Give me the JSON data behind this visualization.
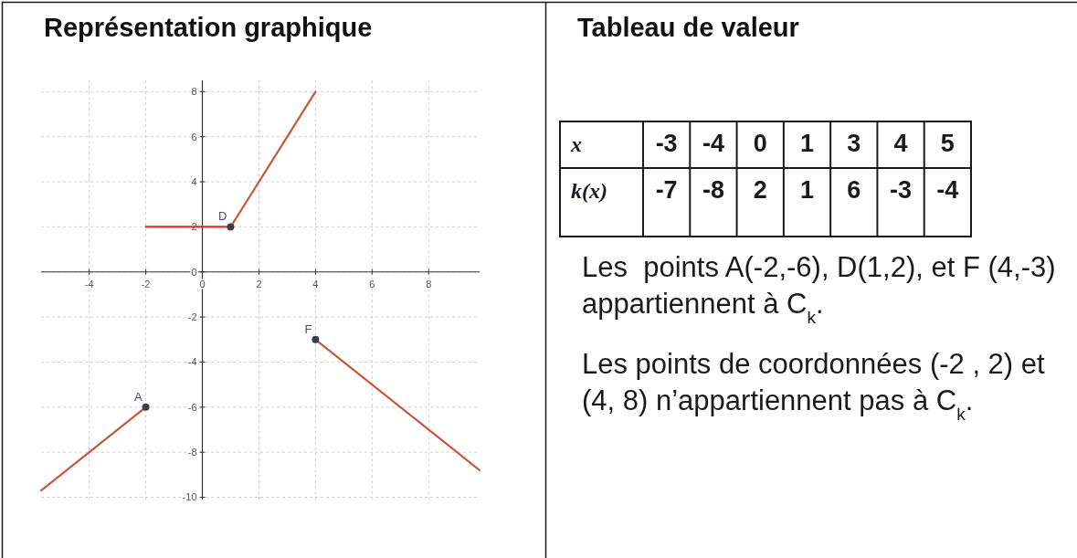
{
  "chart_data": [
    {
      "type": "line",
      "title": "Représentation graphique",
      "xlim": [
        -5.7,
        9.8
      ],
      "ylim": [
        -10.1,
        8.5
      ],
      "xticks": [
        -4,
        -2,
        0,
        2,
        4,
        6,
        8
      ],
      "yticks": [
        -10,
        -8,
        -6,
        -4,
        -2,
        0,
        2,
        4,
        6,
        8
      ],
      "grid": true,
      "series": [
        {
          "color": "#c8553d",
          "x": [
            -5.7,
            -2
          ],
          "values": [
            -9.7,
            -6
          ]
        },
        {
          "color": "#d8342a",
          "x": [
            -2,
            1
          ],
          "values": [
            2,
            2
          ]
        },
        {
          "color": "#c8553d",
          "x": [
            1,
            4
          ],
          "values": [
            2,
            8
          ]
        },
        {
          "color": "#c8553d",
          "x": [
            4,
            9.8
          ],
          "values": [
            -3,
            -8.8
          ]
        },
        {
          "type": "scatter",
          "marker": "circle",
          "color": "#3c3c50",
          "x": [
            -2,
            1,
            4
          ],
          "values": [
            -6,
            2,
            -3
          ]
        }
      ],
      "annotations": [
        {
          "text": "A",
          "x": -2,
          "y": -6
        },
        {
          "text": "D",
          "x": 1,
          "y": 2
        },
        {
          "text": "F",
          "x": 4,
          "y": -3
        }
      ]
    },
    {
      "type": "other",
      "title": "Tableau de valeur",
      "y_categories": [
        "x",
        "k(x)"
      ],
      "cell_labels": [
        [
          "-3",
          "-4",
          "0",
          "1",
          "3",
          "4",
          "5"
        ],
        [
          "-7",
          "-8",
          "2",
          "1",
          "6",
          "-3",
          "-4"
        ]
      ],
      "annotations": [
        "Les  points A(-2,-6), D(1,2), et F (4,-3) appartiennent à C$_{k}$.",
        "Les points de coordonnées (-2 , 2) et (4, 8) n’appartiennent pas à C$_{k}$."
      ]
    }
  ]
}
